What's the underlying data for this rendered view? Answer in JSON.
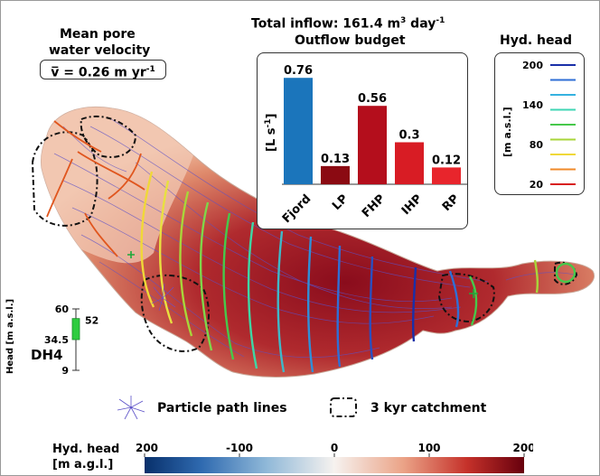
{
  "header": {
    "total_inflow_label": "Total inflow: 161.4 m",
    "total_inflow_sup": "3",
    "total_inflow_unit": " day",
    "total_inflow_unit_sup": "-1",
    "outflow_title": "Outflow budget"
  },
  "velocity": {
    "title_line1": "Mean pore",
    "title_line2": "water velocity",
    "value_text": "v̅ = 0.26 m yr",
    "value_sup": "-1"
  },
  "chart_data": {
    "type": "bar",
    "title": "Outflow budget",
    "ylabel": "[L s-1]",
    "ylabel_text": "[L s",
    "ylabel_sup": "-1",
    "ylabel_close": "]",
    "ylim": [
      0,
      0.8
    ],
    "categories": [
      "Fjord",
      "LP",
      "FHP",
      "IHP",
      "RP"
    ],
    "values": [
      0.76,
      0.13,
      0.56,
      0.3,
      0.12
    ],
    "value_labels": [
      "0.76",
      "0.13",
      "0.56",
      "0.3",
      "0.12"
    ],
    "colors": [
      "#1b75bb",
      "#8b0a12",
      "#b40e1c",
      "#d81c24",
      "#e8252c"
    ]
  },
  "hyd_head_legend": {
    "title": "Hyd. head",
    "unit_label": "[m a.s.l.]",
    "tick_labels": [
      "200",
      "140",
      "80",
      "20"
    ],
    "line_colors": [
      "#1a2fa8",
      "#2f6fd6",
      "#35b2e0",
      "#3fd6b4",
      "#47c84b",
      "#a8d63a",
      "#f0d838",
      "#f08a2a",
      "#d81e1e"
    ]
  },
  "dh4": {
    "name": "DH4",
    "axis_label": "Head [m a.s.l.]",
    "ticks": [
      "60",
      "34.5",
      "9"
    ],
    "range_value": "52",
    "range_min": 9,
    "range_max": 60,
    "range_bar_top": 52,
    "range_bar_bottom": 34.5,
    "bar_color": "#2ecc40"
  },
  "legend": {
    "path_lines": "Particle path lines",
    "catchment": "3 kyr catchment"
  },
  "colorbar": {
    "title_line1": "Hyd. head",
    "title_line2": "[m a.g.l.]",
    "ticks": [
      "-200",
      "-100",
      "0",
      "100",
      "200"
    ],
    "min": -200,
    "max": 200
  }
}
